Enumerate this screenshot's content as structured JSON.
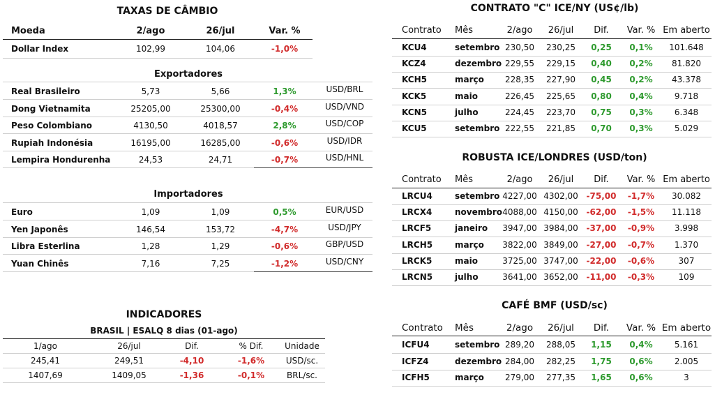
{
  "cambio": {
    "title": "TAXAS DE CÂMBIO",
    "headers": [
      "Moeda",
      "2/ago",
      "26/jul",
      "Var. %"
    ],
    "dollar_index": {
      "name": "Dollar Index",
      "a": "102,99",
      "b": "104,06",
      "var": "-1,0%"
    },
    "exportadores": {
      "title": "Exportadores",
      "rows": [
        {
          "name": "Real Brasileiro",
          "a": "5,73",
          "b": "5,66",
          "var": "1,3%",
          "unit": "USD/BRL",
          "dir": "pos"
        },
        {
          "name": "Dong Vietnamita",
          "a": "25205,00",
          "b": "25300,00",
          "var": "-0,4%",
          "unit": "USD/VND",
          "dir": "neg"
        },
        {
          "name": "Peso Colombiano",
          "a": "4130,50",
          "b": "4018,57",
          "var": "2,8%",
          "unit": "USD/COP",
          "dir": "pos"
        },
        {
          "name": "Rupiah Indonésia",
          "a": "16195,00",
          "b": "16285,00",
          "var": "-0,6%",
          "unit": "USD/IDR",
          "dir": "neg"
        },
        {
          "name": "Lempira Hondurenha",
          "a": "24,53",
          "b": "24,71",
          "var": "-0,7%",
          "unit": "USD/HNL",
          "dir": "neg"
        }
      ]
    },
    "importadores": {
      "title": "Importadores",
      "rows": [
        {
          "name": "Euro",
          "a": "1,09",
          "b": "1,09",
          "var": "0,5%",
          "unit": "EUR/USD",
          "dir": "pos"
        },
        {
          "name": "Yen Japonês",
          "a": "146,54",
          "b": "153,72",
          "var": "-4,7%",
          "unit": "USD/JPY",
          "dir": "neg"
        },
        {
          "name": "Libra Esterlina",
          "a": "1,28",
          "b": "1,29",
          "var": "-0,6%",
          "unit": "GBP/USD",
          "dir": "neg"
        },
        {
          "name": "Yuan Chinês",
          "a": "7,16",
          "b": "7,25",
          "var": "-1,2%",
          "unit": "USD/CNY",
          "dir": "neg"
        }
      ]
    }
  },
  "indicadores": {
    "title": "INDICADORES",
    "subtitle": "BRASIL | ESALQ 8 dias (01-ago)",
    "headers": [
      "1/ago",
      "26/jul",
      "Dif.",
      "% Dif.",
      "Unidade"
    ],
    "rows": [
      {
        "a": "245,41",
        "b": "249,51",
        "dif": "-4,10",
        "pct": "-1,6%",
        "unit": "USD/sc."
      },
      {
        "a": "1407,69",
        "b": "1409,05",
        "dif": "-1,36",
        "pct": "-0,1%",
        "unit": "BRL/sc."
      }
    ]
  },
  "ice_ny": {
    "title": "CONTRATO \"C\" ICE/NY (US¢/lb)",
    "headers": [
      "Contrato",
      "Mês",
      "2/ago",
      "26/jul",
      "Dif.",
      "Var. %",
      "Em aberto"
    ],
    "rows": [
      {
        "c": "KCU4",
        "m": "setembro",
        "a": "230,50",
        "b": "230,25",
        "d": "0,25",
        "v": "0,1%",
        "o": "101.648",
        "dir": "pos"
      },
      {
        "c": "KCZ4",
        "m": "dezembro",
        "a": "229,55",
        "b": "229,15",
        "d": "0,40",
        "v": "0,2%",
        "o": "81.820",
        "dir": "pos"
      },
      {
        "c": "KCH5",
        "m": "março",
        "a": "228,35",
        "b": "227,90",
        "d": "0,45",
        "v": "0,2%",
        "o": "43.378",
        "dir": "pos"
      },
      {
        "c": "KCK5",
        "m": "maio",
        "a": "226,45",
        "b": "225,65",
        "d": "0,80",
        "v": "0,4%",
        "o": "9.718",
        "dir": "pos"
      },
      {
        "c": "KCN5",
        "m": "julho",
        "a": "224,45",
        "b": "223,70",
        "d": "0,75",
        "v": "0,3%",
        "o": "6.348",
        "dir": "pos"
      },
      {
        "c": "KCU5",
        "m": "setembro",
        "a": "222,55",
        "b": "221,85",
        "d": "0,70",
        "v": "0,3%",
        "o": "5.029",
        "dir": "pos"
      }
    ]
  },
  "robusta": {
    "title": "ROBUSTA ICE/LONDRES (USD/ton)",
    "headers": [
      "Contrato",
      "Mês",
      "2/ago",
      "26/jul",
      "Dif.",
      "Var. %",
      "Em aberto"
    ],
    "rows": [
      {
        "c": "LRCU4",
        "m": "setembro",
        "a": "4227,00",
        "b": "4302,00",
        "d": "-75,00",
        "v": "-1,7%",
        "o": "30.082",
        "dir": "neg"
      },
      {
        "c": "LRCX4",
        "m": "novembro",
        "a": "4088,00",
        "b": "4150,00",
        "d": "-62,00",
        "v": "-1,5%",
        "o": "11.118",
        "dir": "neg"
      },
      {
        "c": "LRCF5",
        "m": "janeiro",
        "a": "3947,00",
        "b": "3984,00",
        "d": "-37,00",
        "v": "-0,9%",
        "o": "3.998",
        "dir": "neg"
      },
      {
        "c": "LRCH5",
        "m": "março",
        "a": "3822,00",
        "b": "3849,00",
        "d": "-27,00",
        "v": "-0,7%",
        "o": "1.370",
        "dir": "neg"
      },
      {
        "c": "LRCK5",
        "m": "maio",
        "a": "3725,00",
        "b": "3747,00",
        "d": "-22,00",
        "v": "-0,6%",
        "o": "307",
        "dir": "neg"
      },
      {
        "c": "LRCN5",
        "m": "julho",
        "a": "3641,00",
        "b": "3652,00",
        "d": "-11,00",
        "v": "-0,3%",
        "o": "109",
        "dir": "neg"
      }
    ]
  },
  "bmf": {
    "title": "CAFÉ BMF (USD/sc)",
    "headers": [
      "Contrato",
      "Mês",
      "2/ago",
      "26/jul",
      "Dif.",
      "Var. %",
      "Em aberto"
    ],
    "rows": [
      {
        "c": "ICFU4",
        "m": "setembro",
        "a": "289,20",
        "b": "288,05",
        "d": "1,15",
        "v": "0,4%",
        "o": "5.161",
        "dir": "pos"
      },
      {
        "c": "ICFZ4",
        "m": "dezembro",
        "a": "284,00",
        "b": "282,25",
        "d": "1,75",
        "v": "0,6%",
        "o": "2.005",
        "dir": "pos"
      },
      {
        "c": "ICFH5",
        "m": "março",
        "a": "279,00",
        "b": "277,35",
        "d": "1,65",
        "v": "0,6%",
        "o": "3",
        "dir": "pos"
      }
    ]
  }
}
